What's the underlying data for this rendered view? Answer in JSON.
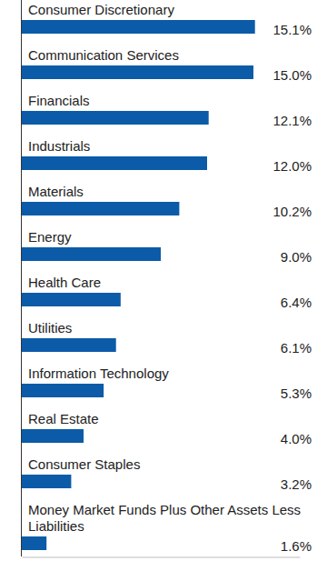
{
  "chart_data": {
    "type": "bar",
    "orientation": "horizontal",
    "categories": [
      "Consumer Discretionary",
      "Communication Services",
      "Financials",
      "Industrials",
      "Materials",
      "Energy",
      "Health Care",
      "Utilities",
      "Information Technology",
      "Real Estate",
      "Consumer Staples",
      "Money Market Funds Plus Other Assets Less Liabilities"
    ],
    "values": [
      15.1,
      15.0,
      12.1,
      12.0,
      10.2,
      9.0,
      6.4,
      6.1,
      5.3,
      4.0,
      3.2,
      1.6
    ],
    "value_labels": [
      "15.1%",
      "15.0%",
      "12.1%",
      "12.0%",
      "10.2%",
      "9.0%",
      "6.4%",
      "6.1%",
      "5.3%",
      "4.0%",
      "3.2%",
      "1.6%"
    ],
    "color": "#0b5ba8",
    "xlim": [
      0,
      18
    ],
    "data_labels": true,
    "tick_labels": false,
    "grid": false
  }
}
